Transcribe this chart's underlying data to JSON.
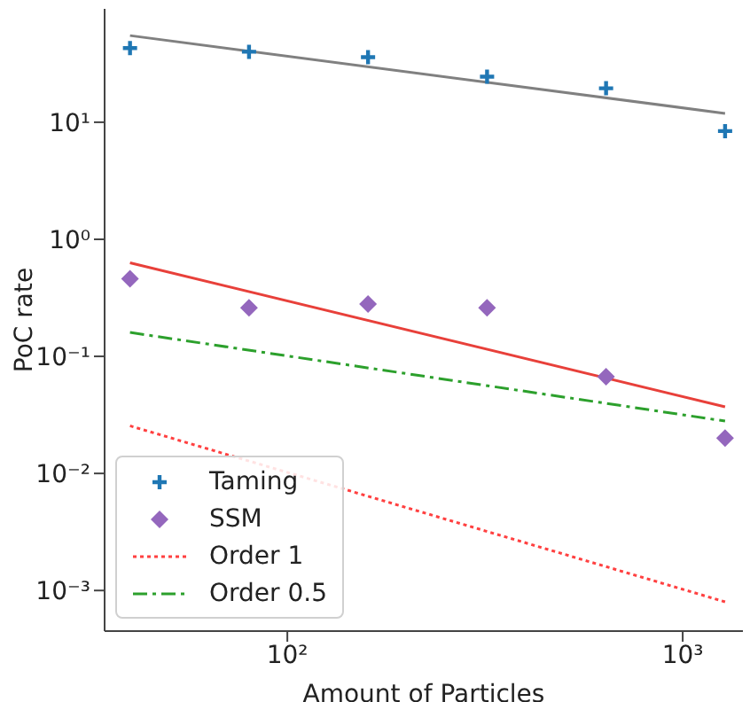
{
  "chart_data": {
    "type": "line",
    "xlabel": "Amount of Particles",
    "ylabel": "PoC rate",
    "log": "xy",
    "xlim": [
      34.5,
      1420
    ],
    "ylim": [
      0.00045,
      93
    ],
    "xticks": [
      {
        "value": 100,
        "label": "10²"
      },
      {
        "value": 1000,
        "label": "10³"
      }
    ],
    "yticks": [
      {
        "value": 0.001,
        "label": "10⁻³"
      },
      {
        "value": 0.01,
        "label": "10⁻²"
      },
      {
        "value": 0.1,
        "label": "10⁻¹"
      },
      {
        "value": 1,
        "label": "10⁰"
      },
      {
        "value": 10,
        "label": "10¹"
      }
    ],
    "legend": "bottom left",
    "grid": false,
    "series": [
      {
        "name": "Taming",
        "type": "scatter",
        "marker": "cross",
        "color": "#1f77b4",
        "x": [
          40,
          80,
          160,
          320,
          640,
          1280
        ],
        "values": [
          43,
          40,
          36,
          24.5,
          19.5,
          8.4
        ]
      },
      {
        "color": "#808080",
        "line_style": "solid",
        "x": [
          40,
          1280
        ],
        "values": [
          55,
          11.9
        ]
      },
      {
        "name": "SSM",
        "type": "scatter",
        "marker": "diamond",
        "color": "#9467bd",
        "x": [
          40,
          80,
          160,
          320,
          640,
          1280
        ],
        "values": [
          0.46,
          0.26,
          0.28,
          0.26,
          0.067,
          0.02
        ]
      },
      {
        "color": "#e8403a",
        "line_style": "solid",
        "x": [
          40,
          1280
        ],
        "values": [
          0.63,
          0.037
        ]
      },
      {
        "name": "Order 1",
        "color": "#ff4040",
        "line_style": "dotted",
        "x": [
          40,
          1280
        ],
        "values": [
          0.0255,
          0.0008
        ]
      },
      {
        "name": "Order 0.5",
        "color": "#2ca02c",
        "line_style": "dashdot",
        "x": [
          40,
          1280
        ],
        "values": [
          0.16,
          0.028
        ]
      }
    ]
  }
}
